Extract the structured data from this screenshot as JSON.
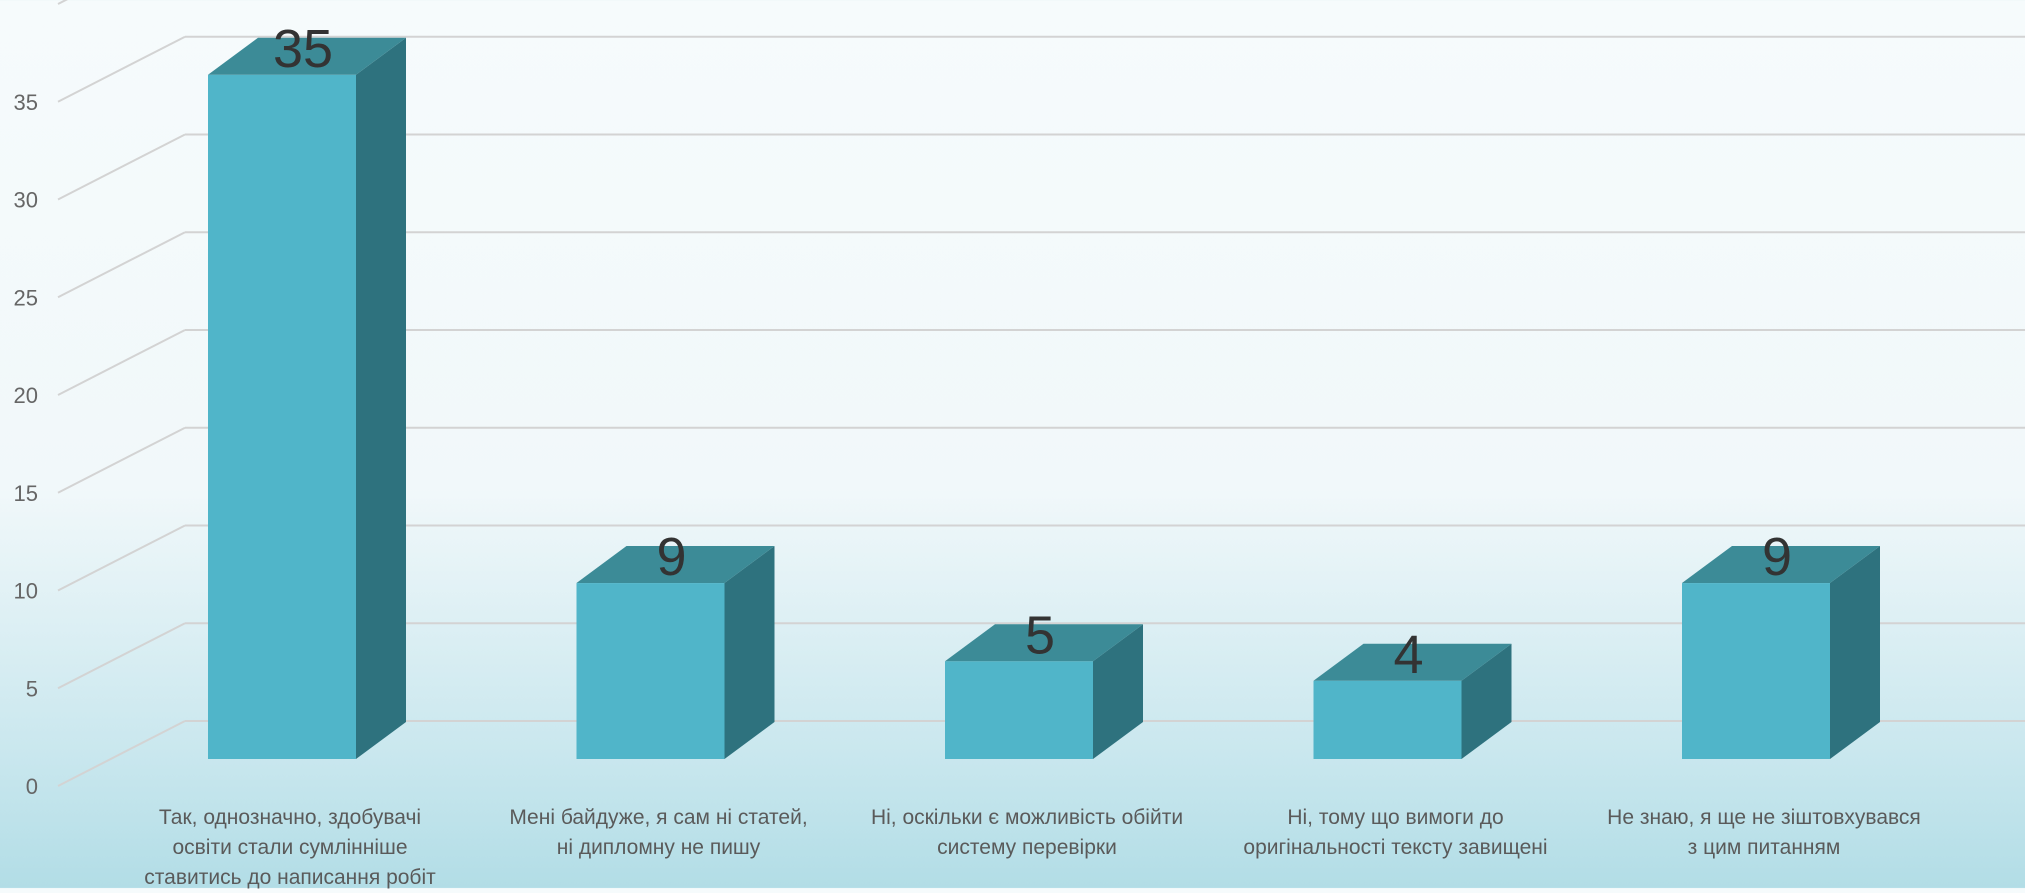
{
  "chart_data": {
    "type": "bar",
    "categories": [
      "Так, однозначно, здобувачі освіти стали сумлінніше ставитись до написання робіт",
      "Мені байдуже, я сам ні статей, ні дипломну не пишу",
      "Ні, оскільки є можливість обійти систему перевірки",
      "Ні, тому що вимоги до оригінальності тексту завищені",
      "Не знаю, я ще не зіштовхувався з цим питанням"
    ],
    "category_lines": [
      "Так, однозначно, здобувачі\nосвіти стали сумлінніше\nставитись до написання робіт",
      "Мені байдуже, я сам ні статей,\nні дипломну не пишу",
      "Ні, оскільки є можливість обійти\nсистему перевірки",
      "Ні, тому що вимоги до\nоригінальності тексту завищені",
      "Не знаю, я ще не зіштовхувався\nз цим питанням"
    ],
    "values": [
      35,
      9,
      5,
      4,
      9
    ],
    "data_labels": [
      "35",
      "9",
      "5",
      "4",
      "9"
    ],
    "y_ticks": [
      "0",
      "5",
      "10",
      "15",
      "20",
      "25",
      "30",
      "35"
    ],
    "ylim": [
      0,
      40
    ],
    "grid": true,
    "three_d": true,
    "colors": {
      "front": "#50b5c9",
      "side": "#2e727e",
      "top": "#3c8b97",
      "grid": "#d3d3d3",
      "text": "#333333"
    }
  }
}
